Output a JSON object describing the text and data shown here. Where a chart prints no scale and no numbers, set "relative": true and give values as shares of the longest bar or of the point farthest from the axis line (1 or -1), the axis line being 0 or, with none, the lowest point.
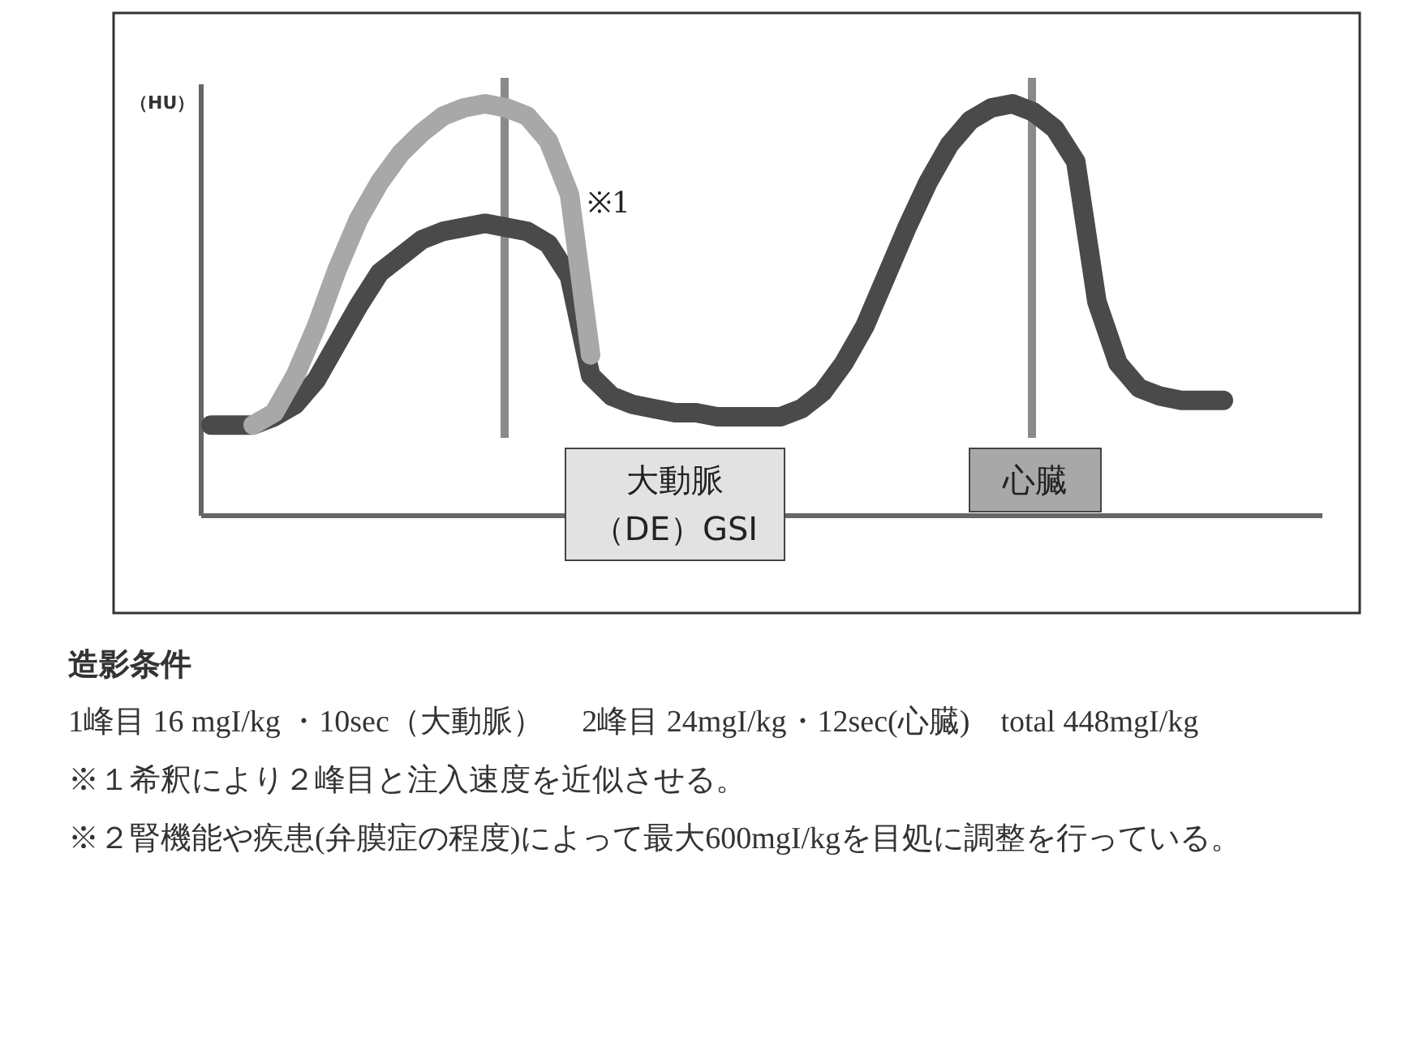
{
  "chart_data": {
    "type": "line",
    "relative": true,
    "title": "造影条件",
    "ylabel": "（HU）",
    "categories": [
      null,
      null,
      null,
      null,
      null,
      null,
      null,
      null,
      null,
      null,
      null,
      null,
      null,
      null,
      null,
      null,
      null,
      null,
      null,
      null,
      null,
      null,
      null,
      null,
      null,
      null,
      null,
      null,
      null,
      null,
      null,
      null,
      null,
      null,
      null,
      null,
      null,
      null,
      null,
      null,
      null,
      null,
      null,
      null,
      null,
      null,
      null,
      null,
      null,
      null
    ],
    "series": [
      {
        "color": "#4a4a4a",
        "values": [
          0.22,
          0.22,
          0.22,
          0.24,
          0.27,
          0.33,
          0.42,
          0.51,
          0.59,
          0.63,
          0.67,
          0.69,
          0.7,
          0.71,
          0.7,
          0.69,
          0.66,
          0.58,
          0.34,
          0.29,
          0.27,
          0.26,
          0.25,
          0.25,
          0.24,
          0.24,
          0.24,
          0.24,
          0.26,
          0.3,
          0.37,
          0.46,
          0.58,
          0.7,
          0.81,
          0.9,
          0.96,
          0.99,
          1,
          0.98,
          0.94,
          0.86,
          0.52,
          0.37,
          0.31,
          0.29,
          0.28,
          0.28,
          0.28,
          null
        ]
      },
      {
        "color": "#a8a8a8",
        "values": [
          null,
          null,
          0.22,
          0.25,
          0.34,
          0.46,
          0.6,
          0.72,
          0.81,
          0.88,
          0.93,
          0.97,
          0.99,
          1,
          0.99,
          0.97,
          0.91,
          0.78,
          0.39,
          null,
          null,
          null,
          null,
          null,
          null,
          null,
          null,
          null,
          null,
          null,
          null,
          null,
          null,
          null,
          null,
          null,
          null,
          null,
          null,
          null,
          null,
          null,
          null,
          null,
          null,
          null,
          null,
          null,
          null,
          null
        ]
      }
    ],
    "annotations": [
      "※1",
      "大動脈（DE）GSI",
      "心臓",
      "1峰目  16 mgI/kg ・10sec（大動脈）　 2峰目  24mgI/kg・12sec(心臓)　total 448mgI/kg",
      "※１希釈により２峰目と注入速度を近似させる。",
      "※２腎機能や疾患(弁膜症の程度)によって最大600mgI/kgを目処に調整を行っている。"
    ]
  }
}
